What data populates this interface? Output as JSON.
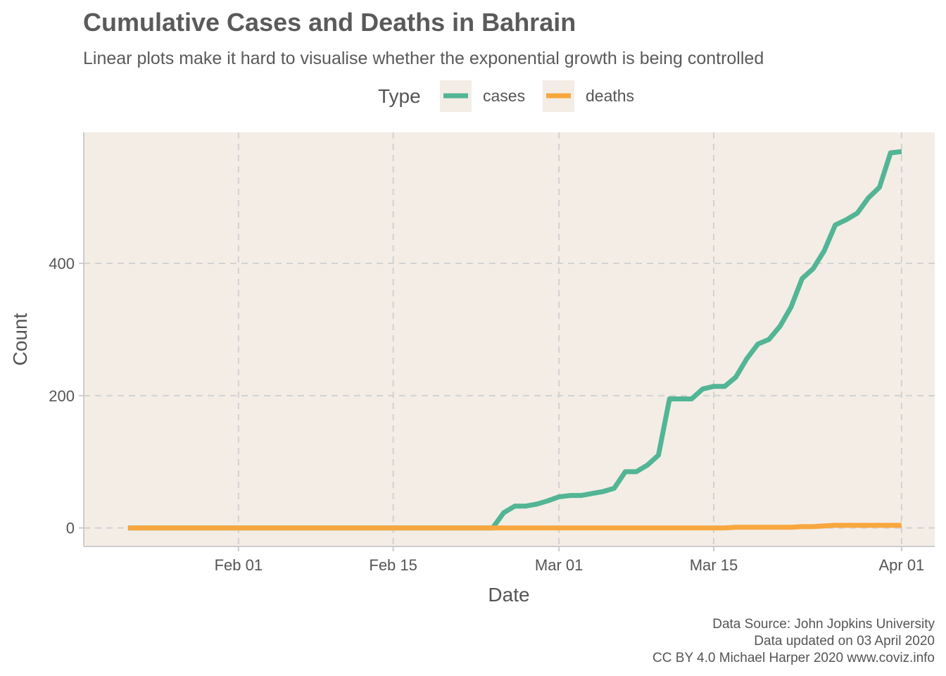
{
  "chart_data": {
    "type": "line",
    "title": "Cumulative Cases and Deaths in Bahrain",
    "subtitle": "Linear plots make it hard to visualise whether the exponential growth is being controlled",
    "xlabel": "Date",
    "ylabel": "Count",
    "legend": {
      "title": "Type",
      "position": "top",
      "entries": [
        "cases",
        "deaths"
      ]
    },
    "x_ticks": [
      "Feb 01",
      "Feb 15",
      "Mar 01",
      "Mar 15",
      "Apr 01"
    ],
    "x_tick_dates": [
      "2020-02-01",
      "2020-02-15",
      "2020-03-01",
      "2020-03-15",
      "2020-04-01"
    ],
    "y_ticks": [
      "0",
      "200",
      "400"
    ],
    "y_tick_values": [
      0,
      200,
      400
    ],
    "xlim": [
      "2020-01-18",
      "2020-04-04"
    ],
    "ylim": [
      -28,
      598
    ],
    "grid": true,
    "grid_style": "dashed",
    "background_color": "#f3ede6",
    "x": [
      "2020-01-22",
      "2020-01-23",
      "2020-01-24",
      "2020-01-25",
      "2020-01-26",
      "2020-01-27",
      "2020-01-28",
      "2020-01-29",
      "2020-01-30",
      "2020-01-31",
      "2020-02-01",
      "2020-02-02",
      "2020-02-03",
      "2020-02-04",
      "2020-02-05",
      "2020-02-06",
      "2020-02-07",
      "2020-02-08",
      "2020-02-09",
      "2020-02-10",
      "2020-02-11",
      "2020-02-12",
      "2020-02-13",
      "2020-02-14",
      "2020-02-15",
      "2020-02-16",
      "2020-02-17",
      "2020-02-18",
      "2020-02-19",
      "2020-02-20",
      "2020-02-21",
      "2020-02-22",
      "2020-02-23",
      "2020-02-24",
      "2020-02-25",
      "2020-02-26",
      "2020-02-27",
      "2020-02-28",
      "2020-02-29",
      "2020-03-01",
      "2020-03-02",
      "2020-03-03",
      "2020-03-04",
      "2020-03-05",
      "2020-03-06",
      "2020-03-07",
      "2020-03-08",
      "2020-03-09",
      "2020-03-10",
      "2020-03-11",
      "2020-03-12",
      "2020-03-13",
      "2020-03-14",
      "2020-03-15",
      "2020-03-16",
      "2020-03-17",
      "2020-03-18",
      "2020-03-19",
      "2020-03-20",
      "2020-03-21",
      "2020-03-22",
      "2020-03-23",
      "2020-03-24",
      "2020-03-25",
      "2020-03-26",
      "2020-03-27",
      "2020-03-28",
      "2020-03-29",
      "2020-03-30",
      "2020-03-31",
      "2020-04-01"
    ],
    "series": [
      {
        "name": "cases",
        "color": "#52b595",
        "values": [
          0,
          0,
          0,
          0,
          0,
          0,
          0,
          0,
          0,
          0,
          0,
          0,
          0,
          0,
          0,
          0,
          0,
          0,
          0,
          0,
          0,
          0,
          0,
          0,
          0,
          0,
          0,
          0,
          0,
          0,
          0,
          0,
          0,
          0,
          23,
          33,
          33,
          36,
          41,
          47,
          49,
          49,
          52,
          55,
          60,
          85,
          85,
          95,
          110,
          195,
          195,
          195,
          210,
          214,
          214,
          228,
          256,
          278,
          285,
          305,
          334,
          377,
          392,
          419,
          458,
          466,
          476,
          499,
          515,
          567,
          569
        ]
      },
      {
        "name": "deaths",
        "color": "#f8a73e",
        "values": [
          0,
          0,
          0,
          0,
          0,
          0,
          0,
          0,
          0,
          0,
          0,
          0,
          0,
          0,
          0,
          0,
          0,
          0,
          0,
          0,
          0,
          0,
          0,
          0,
          0,
          0,
          0,
          0,
          0,
          0,
          0,
          0,
          0,
          0,
          0,
          0,
          0,
          0,
          0,
          0,
          0,
          0,
          0,
          0,
          0,
          0,
          0,
          0,
          0,
          0,
          0,
          0,
          0,
          0,
          0,
          1,
          1,
          1,
          1,
          1,
          1,
          2,
          2,
          3,
          4,
          4,
          4,
          4,
          4,
          4,
          4
        ]
      }
    ],
    "caption": [
      "Data Source: John Jopkins University",
      "Data updated on 03 April 2020",
      "CC BY 4.0 Michael Harper 2020 www.coviz.info"
    ]
  }
}
